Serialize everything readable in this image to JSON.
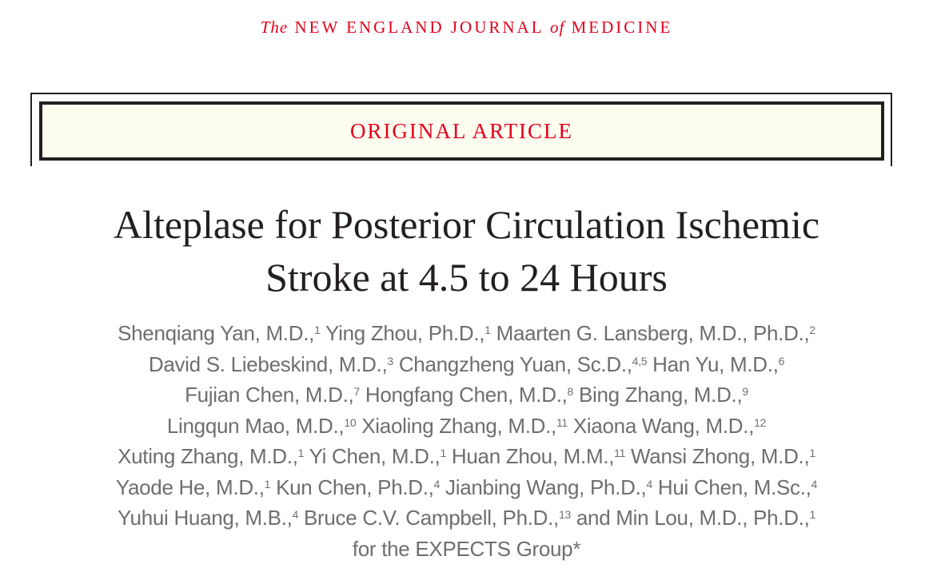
{
  "masthead": {
    "the": "The",
    "part1": "NEW ENGLAND JOURNAL",
    "of": "of",
    "part2": "MEDICINE"
  },
  "banner": {
    "label": "ORIGINAL ARTICLE"
  },
  "title": {
    "line1": "Alteplase for Posterior Circulation Ischemic",
    "line2": "Stroke at 4.5 to 24 Hours"
  },
  "authors": [
    [
      {
        "n": "Shenqiang Yan, M.D.,",
        "s": "1"
      },
      {
        "n": " Ying Zhou, Ph.D.,",
        "s": "1"
      },
      {
        "n": " Maarten G. Lansberg, M.D., Ph.D.,",
        "s": "2"
      }
    ],
    [
      {
        "n": "David S. Liebeskind, M.D.,",
        "s": "3"
      },
      {
        "n": " Changzheng Yuan, Sc.D.,",
        "s": "4,5"
      },
      {
        "n": " Han Yu, M.D.,",
        "s": "6"
      }
    ],
    [
      {
        "n": "Fujian Chen, M.D.,",
        "s": "7"
      },
      {
        "n": " Hongfang Chen, M.D.,",
        "s": "8"
      },
      {
        "n": " Bing Zhang, M.D.,",
        "s": "9"
      }
    ],
    [
      {
        "n": "Lingqun Mao, M.D.,",
        "s": "10"
      },
      {
        "n": " Xiaoling Zhang, M.D.,",
        "s": "11"
      },
      {
        "n": " Xiaona Wang, M.D.,",
        "s": "12"
      }
    ],
    [
      {
        "n": "Xuting Zhang, M.D.,",
        "s": "1"
      },
      {
        "n": " Yi Chen, M.D.,",
        "s": "1"
      },
      {
        "n": " Huan Zhou, M.M.,",
        "s": "11"
      },
      {
        "n": " Wansi Zhong, M.D.,",
        "s": "1"
      }
    ],
    [
      {
        "n": "Yaode He, M.D.,",
        "s": "1"
      },
      {
        "n": " Kun Chen, Ph.D.,",
        "s": "4"
      },
      {
        "n": " Jianbing Wang, Ph.D.,",
        "s": "4"
      },
      {
        "n": " Hui Chen, M.Sc.,",
        "s": "4"
      }
    ],
    [
      {
        "n": "Yuhui Huang, M.B.,",
        "s": "4"
      },
      {
        "n": " Bruce C.V. Campbell, Ph.D.,",
        "s": "13"
      },
      {
        "n": " and Min Lou, M.D., Ph.D.,",
        "s": "1"
      }
    ],
    [
      {
        "n": "for the EXPECTS Group*",
        "s": ""
      }
    ]
  ]
}
